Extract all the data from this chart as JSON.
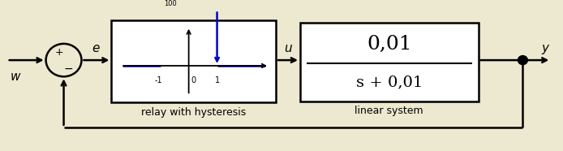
{
  "bg_color": "#ede8d0",
  "line_color": "black",
  "blue_color": "#0000cc",
  "fig_width": 6.94,
  "fig_height": 1.86,
  "relay_label": "relay with hysteresis",
  "linear_num": "0,01",
  "linear_den": "s + 0,01",
  "linear_label": "linear system",
  "w_label": "w",
  "e_label": "e",
  "u_label": "u",
  "y_label": "y"
}
